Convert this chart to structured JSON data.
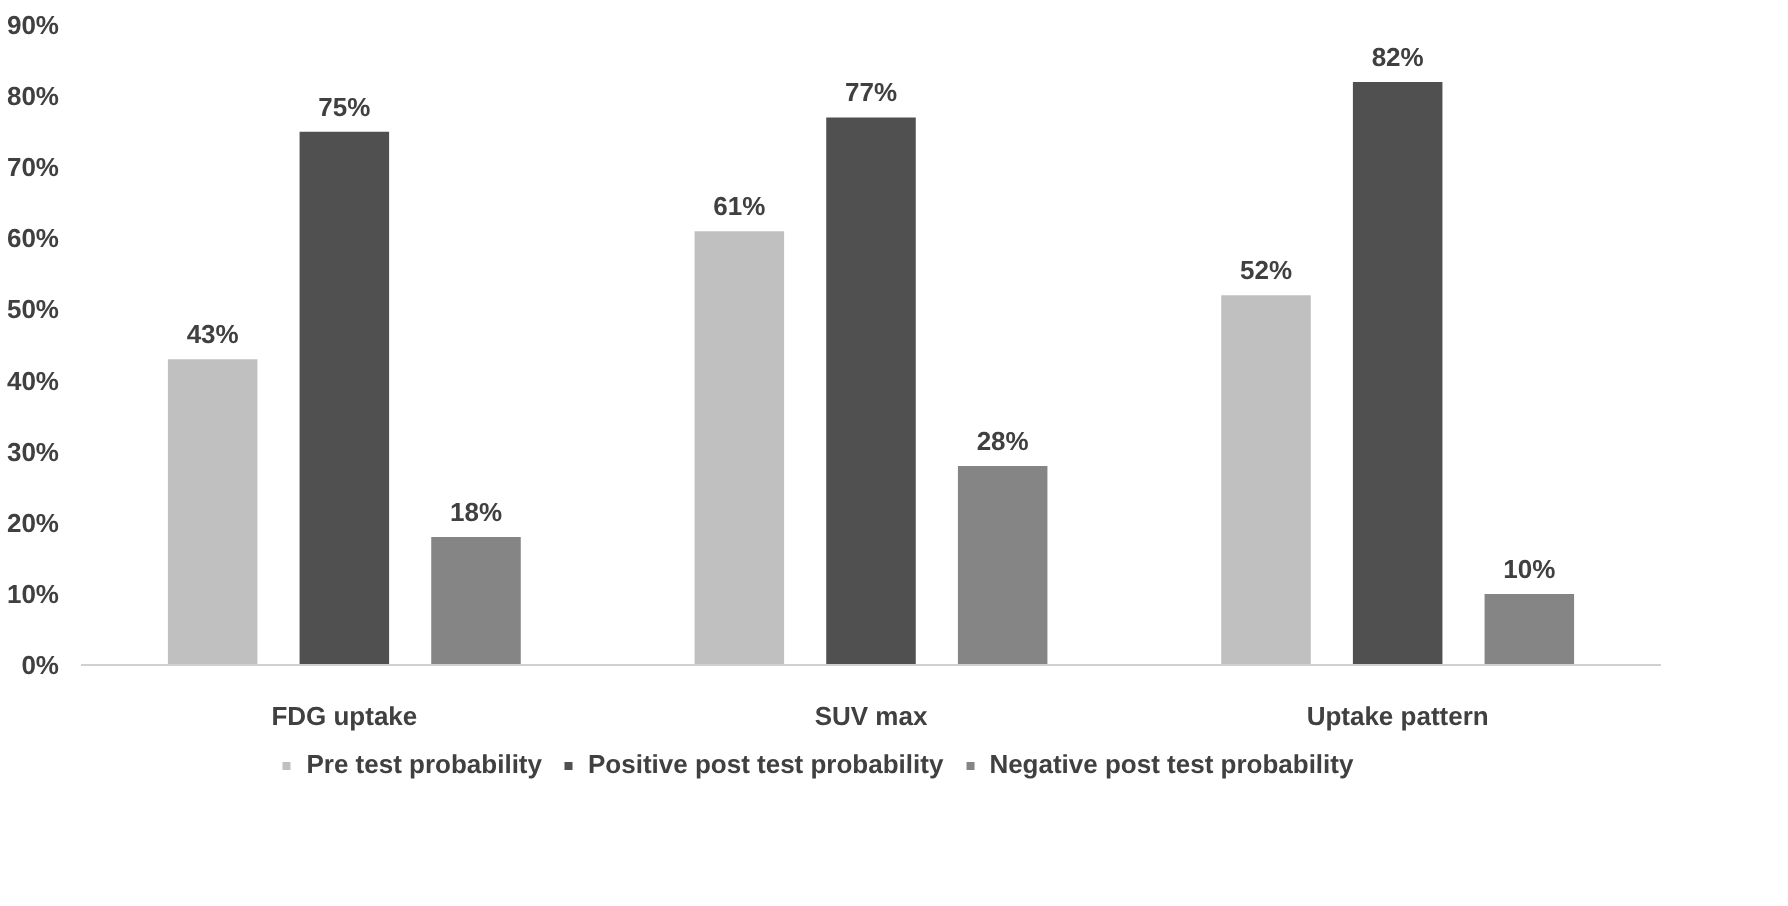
{
  "chart_data": {
    "type": "bar",
    "categories": [
      "FDG uptake",
      "SUV max",
      "Uptake pattern"
    ],
    "series": [
      {
        "name": "Pre test probability",
        "color": "#c0c0c0",
        "values": [
          43,
          61,
          52
        ],
        "value_labels": [
          "43%",
          "61%",
          "52%"
        ]
      },
      {
        "name": "Positive post test probability",
        "color": "#505050",
        "values": [
          75,
          77,
          82
        ],
        "value_labels": [
          "75%",
          "77%",
          "82%"
        ]
      },
      {
        "name": "Negative post test probability",
        "color": "#858585",
        "values": [
          18,
          28,
          10
        ],
        "value_labels": [
          "18%",
          "28%",
          "10%"
        ]
      }
    ],
    "ylim": [
      0,
      90
    ],
    "yticks": [
      {
        "value": 0,
        "label": "0%"
      },
      {
        "value": 10,
        "label": "10%"
      },
      {
        "value": 20,
        "label": "20%"
      },
      {
        "value": 30,
        "label": "30%"
      },
      {
        "value": 40,
        "label": "40%"
      },
      {
        "value": 50,
        "label": "50%"
      },
      {
        "value": 60,
        "label": "60%"
      },
      {
        "value": 70,
        "label": "70%"
      },
      {
        "value": 80,
        "label": "80%"
      },
      {
        "value": 90,
        "label": "90%"
      }
    ],
    "grid": false,
    "legend": "bottom"
  }
}
